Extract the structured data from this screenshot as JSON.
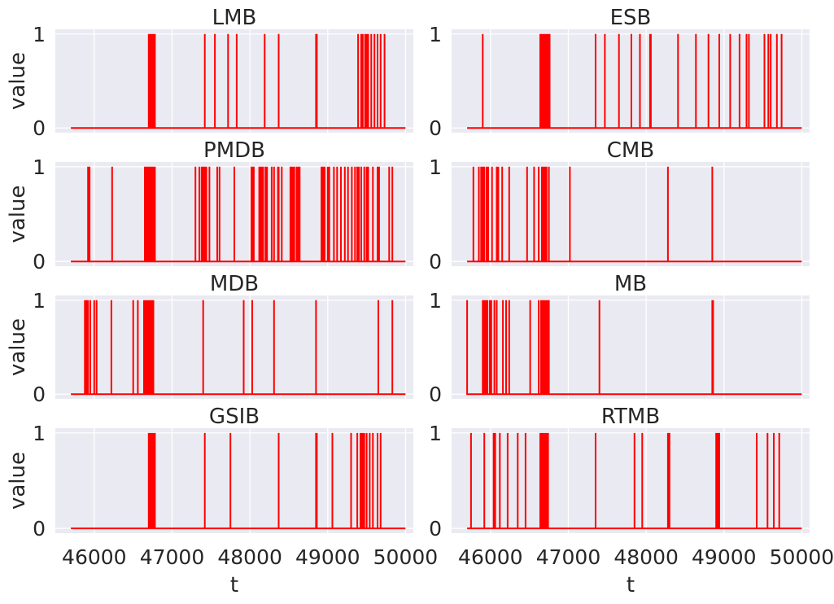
{
  "figure": {
    "xlabel": "t",
    "ylabel": "value",
    "line_color": "#ff0000",
    "panel_bg": "#eaeaf2",
    "grid_color": "#ffffff"
  },
  "chart_data": [
    {
      "type": "line",
      "title": "LMB",
      "xlabel": "",
      "ylabel": "value",
      "xlim": [
        45500,
        50100
      ],
      "ylim": [
        -0.05,
        1.05
      ],
      "xticks": [
        46000,
        47000,
        48000,
        49000,
        50000
      ],
      "yticks": [
        0,
        1
      ],
      "grid": true,
      "x_start": 45700,
      "x_end": 50000,
      "spikes": [
        46700,
        46710,
        46720,
        46730,
        46740,
        46750,
        46760,
        46770,
        46780,
        47420,
        47550,
        47720,
        47830,
        48190,
        48370,
        48850,
        48860,
        49390,
        49430,
        49450,
        49480,
        49500,
        49520,
        49560,
        49600,
        49640,
        49680,
        49730
      ]
    },
    {
      "type": "line",
      "title": "ESB",
      "xlabel": "",
      "ylabel": "",
      "xlim": [
        45500,
        50100
      ],
      "ylim": [
        -0.05,
        1.05
      ],
      "xticks": [
        46000,
        47000,
        48000,
        49000,
        50000
      ],
      "yticks": [
        0,
        1
      ],
      "grid": true,
      "x_start": 45700,
      "x_end": 50000,
      "spikes": [
        45900,
        46640,
        46650,
        46660,
        46670,
        46680,
        46690,
        46700,
        46710,
        46720,
        46730,
        46740,
        46750,
        46760,
        47350,
        47470,
        47650,
        47810,
        47920,
        48050,
        48060,
        48410,
        48640,
        48800,
        48940,
        49080,
        49200,
        49290,
        49320,
        49520,
        49570,
        49600,
        49680,
        49740
      ]
    },
    {
      "type": "line",
      "title": "PMDB",
      "xlabel": "",
      "ylabel": "value",
      "xlim": [
        45500,
        50100
      ],
      "ylim": [
        -0.05,
        1.05
      ],
      "xticks": [
        46000,
        47000,
        48000,
        49000,
        50000
      ],
      "yticks": [
        0,
        1
      ],
      "grid": true,
      "x_start": 45700,
      "x_end": 50000,
      "spikes": [
        45920,
        45940,
        46230,
        46650,
        46670,
        46690,
        46700,
        46710,
        46720,
        46730,
        46740,
        46760,
        46780,
        47300,
        47350,
        47380,
        47400,
        47420,
        47440,
        47480,
        47580,
        47610,
        47800,
        48020,
        48040,
        48050,
        48120,
        48130,
        48150,
        48170,
        48200,
        48220,
        48280,
        48310,
        48360,
        48370,
        48410,
        48520,
        48540,
        48560,
        48570,
        48600,
        48620,
        48640,
        48920,
        48940,
        48960,
        49000,
        49020,
        49080,
        49120,
        49170,
        49220,
        49260,
        49310,
        49350,
        49380,
        49400,
        49430,
        49470,
        49500,
        49520,
        49580,
        49640,
        49660,
        49790,
        49830
      ]
    },
    {
      "type": "line",
      "title": "CMB",
      "xlabel": "",
      "ylabel": "",
      "xlim": [
        45500,
        50100
      ],
      "ylim": [
        -0.05,
        1.05
      ],
      "xticks": [
        46000,
        47000,
        48000,
        49000,
        50000
      ],
      "yticks": [
        0,
        1
      ],
      "grid": true,
      "x_start": 45700,
      "x_end": 50000,
      "spikes": [
        45780,
        45850,
        45880,
        45900,
        45920,
        45950,
        45970,
        46020,
        46080,
        46100,
        46150,
        46240,
        46470,
        46560,
        46620,
        46660,
        46680,
        46700,
        46720,
        46750,
        47020,
        48280,
        48850
      ]
    },
    {
      "type": "line",
      "title": "MDB",
      "xlabel": "",
      "ylabel": "value",
      "xlim": [
        45500,
        50100
      ],
      "ylim": [
        -0.05,
        1.05
      ],
      "xticks": [
        46000,
        47000,
        48000,
        49000,
        50000
      ],
      "yticks": [
        0,
        1
      ],
      "grid": true,
      "x_start": 45700,
      "x_end": 50000,
      "spikes": [
        45880,
        45900,
        45920,
        45950,
        46000,
        46030,
        46220,
        46500,
        46560,
        46640,
        46650,
        46660,
        46670,
        46680,
        46690,
        46700,
        46710,
        46720,
        46730,
        46740,
        46750,
        46760,
        47400,
        47920,
        48030,
        48310,
        48850,
        49650,
        49830
      ]
    },
    {
      "type": "line",
      "title": "MB",
      "xlabel": "",
      "ylabel": "",
      "xlim": [
        45500,
        50100
      ],
      "ylim": [
        -0.05,
        1.05
      ],
      "xticks": [
        46000,
        47000,
        48000,
        49000,
        50000
      ],
      "yticks": [
        0,
        1
      ],
      "grid": true,
      "x_start": 45700,
      "x_end": 50000,
      "spikes": [
        45700,
        45900,
        45920,
        45940,
        45960,
        45990,
        46010,
        46050,
        46080,
        46160,
        46200,
        46240,
        46510,
        46620,
        46650,
        46670,
        46690,
        46700,
        46710,
        46720,
        46730,
        46740,
        46750,
        47400,
        48850,
        48860
      ]
    },
    {
      "type": "line",
      "title": "GSIB",
      "xlabel": "t",
      "ylabel": "value",
      "xlim": [
        45500,
        50100
      ],
      "ylim": [
        -0.05,
        1.05
      ],
      "xticks": [
        46000,
        47000,
        48000,
        49000,
        50000
      ],
      "yticks": [
        0,
        1
      ],
      "grid": true,
      "x_start": 45700,
      "x_end": 50000,
      "spikes": [
        46700,
        46710,
        46720,
        46730,
        46740,
        46750,
        46760,
        46770,
        46780,
        47420,
        47750,
        48370,
        48850,
        48860,
        49060,
        49300,
        49380,
        49420,
        49430,
        49450,
        49470,
        49500,
        49540,
        49580,
        49640,
        49680
      ]
    },
    {
      "type": "line",
      "title": "RTMB",
      "xlabel": "t",
      "ylabel": "",
      "xlim": [
        45500,
        50100
      ],
      "ylim": [
        -0.05,
        1.05
      ],
      "xticks": [
        46000,
        47000,
        48000,
        49000,
        50000
      ],
      "yticks": [
        0,
        1
      ],
      "grid": true,
      "x_start": 45700,
      "x_end": 50000,
      "spikes": [
        45750,
        45920,
        46040,
        46060,
        46120,
        46220,
        46350,
        46450,
        46640,
        46650,
        46660,
        46670,
        46680,
        46690,
        46700,
        46710,
        46720,
        46730,
        46740,
        47350,
        47850,
        47950,
        48280,
        48300,
        48900,
        48920,
        48940,
        49420,
        49560,
        49640,
        49710
      ]
    }
  ]
}
